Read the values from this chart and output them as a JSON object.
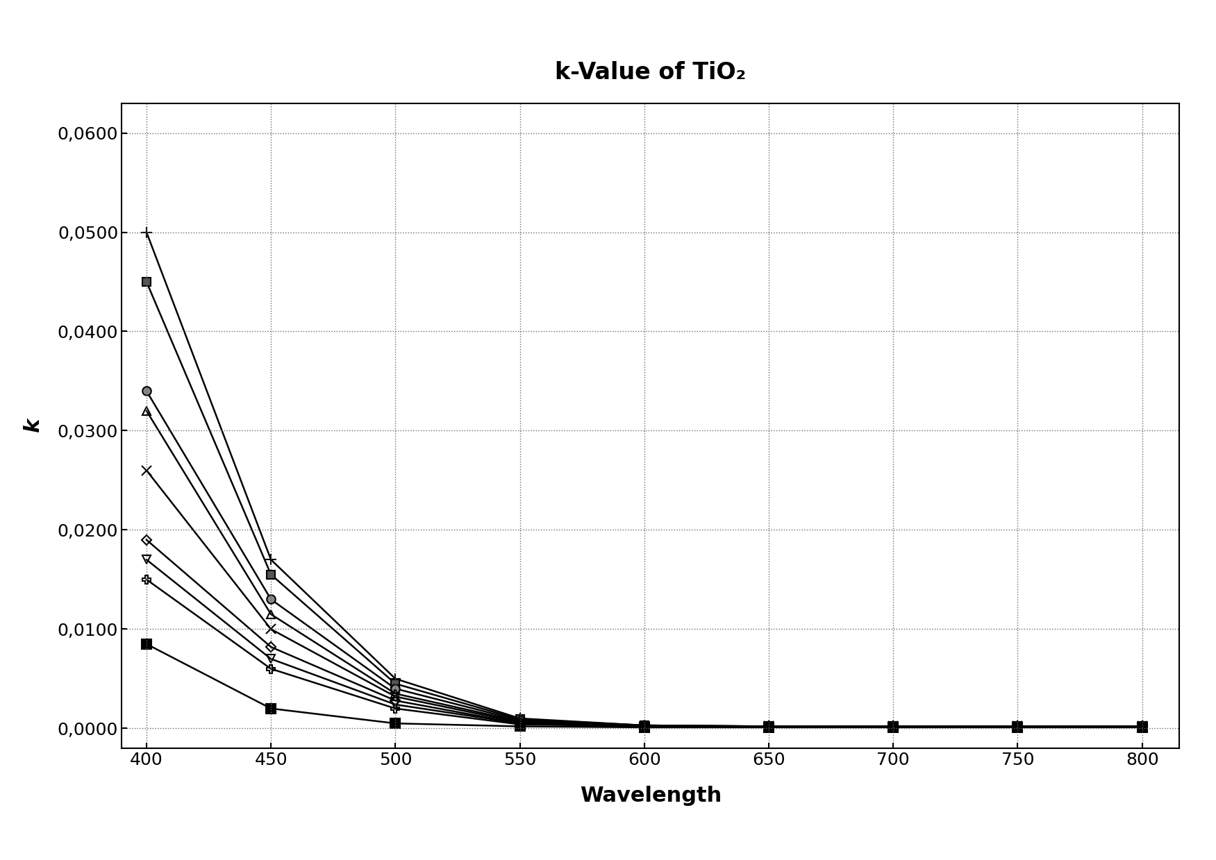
{
  "title": "k-Value of TiO₂",
  "xlabel": "Wavelength",
  "ylabel": "k",
  "x_ticks": [
    400,
    450,
    500,
    550,
    600,
    650,
    700,
    750,
    800
  ],
  "ylim": [
    -0.002,
    0.063
  ],
  "xlim": [
    390,
    815
  ],
  "y_ticks": [
    0.0,
    0.01,
    0.02,
    0.03,
    0.04,
    0.05,
    0.06
  ],
  "y_tick_labels": [
    "0,0000",
    "0,0100",
    "0,0200",
    "0,0300",
    "0,0400",
    "0,0500",
    "0,0600"
  ],
  "background_color": "#ffffff",
  "series": [
    {
      "x": [
        400,
        450,
        500,
        550,
        600,
        650,
        700,
        750,
        800
      ],
      "y": [
        0.05,
        0.017,
        0.005,
        0.001,
        0.0003,
        0.0002,
        0.0002,
        0.0002,
        0.0002
      ],
      "marker": "+",
      "color": "#000000",
      "markersize": 12,
      "linewidth": 1.8,
      "markerfacecolor": "none"
    },
    {
      "x": [
        400,
        450,
        500,
        550,
        600,
        650,
        700,
        750,
        800
      ],
      "y": [
        0.045,
        0.0155,
        0.0045,
        0.0009,
        0.0003,
        0.0002,
        0.0002,
        0.0002,
        0.0002
      ],
      "marker": "s",
      "color": "#000000",
      "markersize": 8,
      "linewidth": 1.8,
      "markerfacecolor": "#555555"
    },
    {
      "x": [
        400,
        450,
        500,
        550,
        600,
        650,
        700,
        750,
        800
      ],
      "y": [
        0.034,
        0.013,
        0.004,
        0.0008,
        0.0003,
        0.0002,
        0.0002,
        0.0002,
        0.0002
      ],
      "marker": "o",
      "color": "#000000",
      "markersize": 9,
      "linewidth": 1.8,
      "markerfacecolor": "#888888"
    },
    {
      "x": [
        400,
        450,
        500,
        550,
        600,
        650,
        700,
        750,
        800
      ],
      "y": [
        0.032,
        0.0115,
        0.0035,
        0.0007,
        0.0002,
        0.0002,
        0.0002,
        0.0002,
        0.0002
      ],
      "marker": "^",
      "color": "#000000",
      "markersize": 8,
      "linewidth": 1.8,
      "markerfacecolor": "none"
    },
    {
      "x": [
        400,
        450,
        500,
        550,
        600,
        650,
        700,
        750,
        800
      ],
      "y": [
        0.026,
        0.01,
        0.0032,
        0.0006,
        0.0002,
        0.0002,
        0.0002,
        0.0002,
        0.0002
      ],
      "marker": "x",
      "color": "#000000",
      "markersize": 10,
      "linewidth": 1.8,
      "markerfacecolor": "none"
    },
    {
      "x": [
        400,
        450,
        500,
        550,
        600,
        650,
        700,
        750,
        800
      ],
      "y": [
        0.019,
        0.0082,
        0.0028,
        0.0005,
        0.0002,
        0.0002,
        0.0002,
        0.0002,
        0.0002
      ],
      "marker": "D",
      "color": "#000000",
      "markersize": 7,
      "linewidth": 1.8,
      "markerfacecolor": "none"
    },
    {
      "x": [
        400,
        450,
        500,
        550,
        600,
        650,
        700,
        750,
        800
      ],
      "y": [
        0.017,
        0.007,
        0.0024,
        0.0005,
        0.0002,
        0.0002,
        0.0002,
        0.0002,
        0.0002
      ],
      "marker": "v",
      "color": "#000000",
      "markersize": 8,
      "linewidth": 1.8,
      "markerfacecolor": "none"
    },
    {
      "x": [
        400,
        450,
        500,
        550,
        600,
        650,
        700,
        750,
        800
      ],
      "y": [
        0.015,
        0.006,
        0.002,
        0.0004,
        0.0002,
        0.0002,
        0.0002,
        0.0002,
        0.0002
      ],
      "marker": "P",
      "color": "#000000",
      "markersize": 8,
      "linewidth": 1.8,
      "markerfacecolor": "none"
    },
    {
      "x": [
        400,
        450,
        500,
        550,
        600,
        650,
        700,
        750,
        800
      ],
      "y": [
        0.0085,
        0.002,
        0.0005,
        0.0002,
        0.0001,
        0.0001,
        0.0001,
        0.0001,
        0.0001
      ],
      "marker": "s",
      "color": "#000000",
      "markersize": 10,
      "linewidth": 1.8,
      "markerfacecolor": "#000000"
    }
  ]
}
